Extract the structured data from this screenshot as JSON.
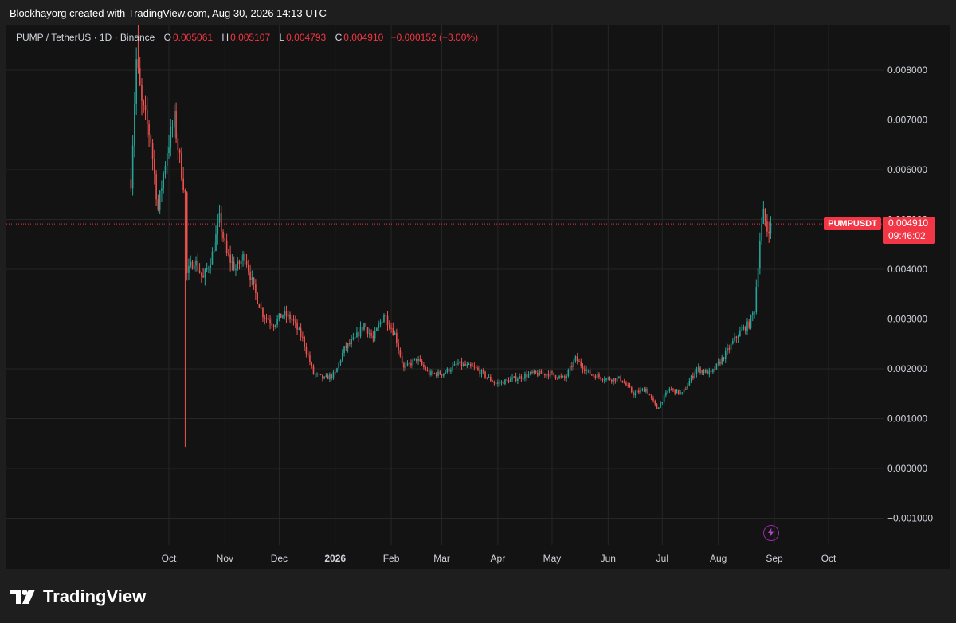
{
  "header": {
    "credit": "Blockhayorg created with TradingView.com, Aug 30, 2026 14:13 UTC"
  },
  "legend": {
    "symbol": "PUMP / TetherUS · 1D · Binance",
    "open_label": "O",
    "open": "0.005061",
    "high_label": "H",
    "high": "0.005107",
    "low_label": "L",
    "low": "0.004793",
    "close_label": "C",
    "close": "0.004910",
    "change": "−0.000152 (−3.00%)"
  },
  "price_tag": {
    "ticker": "PUMPUSDT",
    "price": "0.004910",
    "countdown": "09:46:02"
  },
  "footer": {
    "brand": "TradingView"
  },
  "colors": {
    "up": "#26a69a",
    "down": "#ef5350",
    "tag": "#f23645",
    "background": "#131313",
    "grid": "#262626"
  },
  "icons": {
    "lightning": "lightning-icon",
    "logo": "tradingview-logo-icon"
  },
  "chart_data": {
    "type": "candlestick",
    "symbol": "PUMPUSDT",
    "interval": "1D",
    "exchange": "Binance",
    "y_ticks": [
      "0.008000",
      "0.007000",
      "0.006000",
      "0.005000",
      "0.004000",
      "0.003000",
      "0.002000",
      "0.001000",
      "0.000000",
      "−0.001000"
    ],
    "y_tick_values": [
      0.008,
      0.007,
      0.006,
      0.005,
      0.004,
      0.003,
      0.002,
      0.001,
      0,
      -0.001
    ],
    "ylim": [
      -0.0013,
      0.0092
    ],
    "x_ticks": [
      "Oct",
      "Nov",
      "Dec",
      "2026",
      "Feb",
      "Mar",
      "Apr",
      "May",
      "Jun",
      "Jul",
      "Aug",
      "Sep",
      "Oct"
    ],
    "x_tick_dates": [
      "2025-10-01",
      "2025-11-01",
      "2025-12-01",
      "2026-01-01",
      "2026-02-01",
      "2026-03-01",
      "2026-04-01",
      "2026-05-01",
      "2026-06-01",
      "2026-07-01",
      "2026-08-01",
      "2026-09-01",
      "2026-10-01"
    ],
    "first_date": "2025-09-10",
    "last_date": "2026-08-30",
    "last_close": 0.00491,
    "series_close_keypoints": [
      [
        "2025-09-10",
        0.0058
      ],
      [
        "2025-09-13",
        0.0082
      ],
      [
        "2025-09-16",
        0.0073
      ],
      [
        "2025-09-21",
        0.0066
      ],
      [
        "2025-09-25",
        0.0052
      ],
      [
        "2025-09-30",
        0.0064
      ],
      [
        "2025-10-04",
        0.007
      ],
      [
        "2025-10-07",
        0.0062
      ],
      [
        "2025-10-10",
        0.0055
      ],
      [
        "2025-10-11",
        0.0039
      ],
      [
        "2025-10-15",
        0.0042
      ],
      [
        "2025-10-20",
        0.0038
      ],
      [
        "2025-10-25",
        0.0043
      ],
      [
        "2025-10-29",
        0.005
      ],
      [
        "2025-11-02",
        0.0043
      ],
      [
        "2025-11-07",
        0.004
      ],
      [
        "2025-11-12",
        0.0043
      ],
      [
        "2025-11-17",
        0.0036
      ],
      [
        "2025-11-22",
        0.0031
      ],
      [
        "2025-11-28",
        0.0029
      ],
      [
        "2025-12-03",
        0.0031
      ],
      [
        "2025-12-08",
        0.003
      ],
      [
        "2025-12-14",
        0.0026
      ],
      [
        "2025-12-20",
        0.0019
      ],
      [
        "2025-12-26",
        0.0018
      ],
      [
        "2026-01-01",
        0.0019
      ],
      [
        "2026-01-06",
        0.0024
      ],
      [
        "2026-01-12",
        0.0026
      ],
      [
        "2026-01-17",
        0.0029
      ],
      [
        "2026-01-22",
        0.0026
      ],
      [
        "2026-01-28",
        0.0031
      ],
      [
        "2026-02-03",
        0.0027
      ],
      [
        "2026-02-08",
        0.002
      ],
      [
        "2026-02-15",
        0.0022
      ],
      [
        "2026-02-22",
        0.0019
      ],
      [
        "2026-03-01",
        0.0019
      ],
      [
        "2026-03-10",
        0.0021
      ],
      [
        "2026-03-20",
        0.002
      ],
      [
        "2026-03-31",
        0.0017
      ],
      [
        "2026-04-10",
        0.0018
      ],
      [
        "2026-04-20",
        0.0019
      ],
      [
        "2026-04-30",
        0.0019
      ],
      [
        "2026-05-08",
        0.0018
      ],
      [
        "2026-05-14",
        0.0022
      ],
      [
        "2026-05-22",
        0.0019
      ],
      [
        "2026-05-31",
        0.0018
      ],
      [
        "2026-06-08",
        0.0018
      ],
      [
        "2026-06-15",
        0.0015
      ],
      [
        "2026-06-22",
        0.0016
      ],
      [
        "2026-06-28",
        0.0012
      ],
      [
        "2026-07-05",
        0.0016
      ],
      [
        "2026-07-12",
        0.0015
      ],
      [
        "2026-07-20",
        0.002
      ],
      [
        "2026-07-28",
        0.0019
      ],
      [
        "2026-08-05",
        0.0023
      ],
      [
        "2026-08-12",
        0.0027
      ],
      [
        "2026-08-18",
        0.0029
      ],
      [
        "2026-08-21",
        0.0032
      ],
      [
        "2026-08-24",
        0.0046
      ],
      [
        "2026-08-26",
        0.0051
      ],
      [
        "2026-08-28",
        0.0048
      ],
      [
        "2026-08-30",
        0.00491
      ]
    ],
    "extreme_wicks": [
      {
        "date": "2025-09-14",
        "high": 0.0092
      },
      {
        "date": "2025-10-10",
        "low": 0.00043
      }
    ]
  }
}
